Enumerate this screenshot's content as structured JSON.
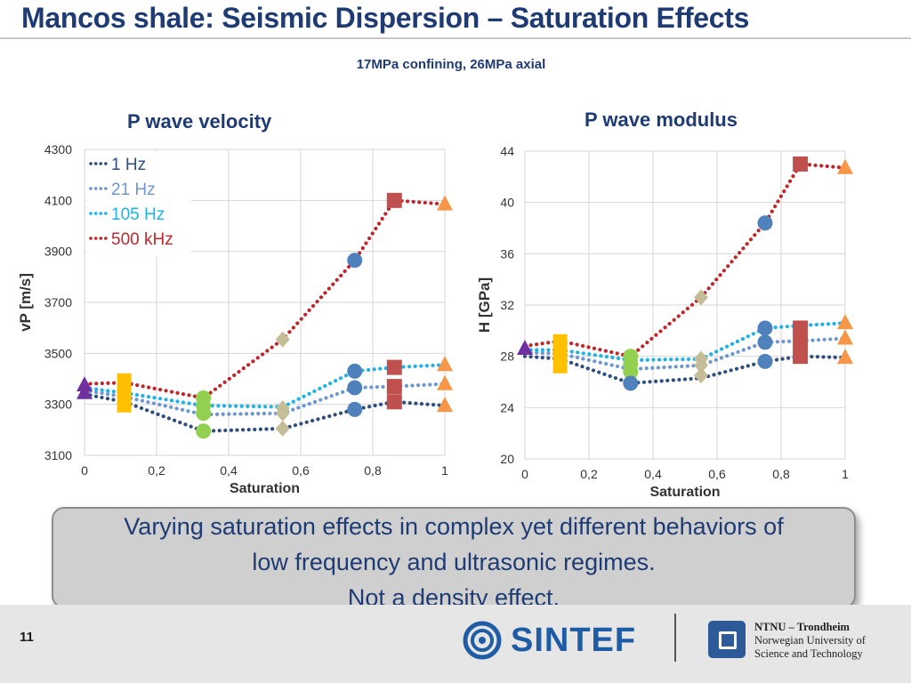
{
  "title": "Mancos shale: Seismic Dispersion – Saturation Effects",
  "subtitle": "17MPa confining, 26MPa axial",
  "callout": {
    "line1": "Varying saturation effects in complex yet different behaviors of",
    "line2": "low frequency and ultrasonic regimes.",
    "line3": "Not a density effect."
  },
  "footer": {
    "page_number": "11",
    "sintef_label": "SINTEF",
    "ntnu_line1": "NTNU – Trondheim",
    "ntnu_line2": "Norwegian University of",
    "ntnu_line3": "Science and Technology"
  },
  "series_colors": {
    "1 Hz": "#2f4f7f",
    "21 Hz": "#6f97cf",
    "105 Hz": "#1fb2e6",
    "500 kHz": "#c0272d"
  },
  "marker_colors": {
    "purple": "#7030a0",
    "yellow": "#ffc000",
    "green": "#92d050",
    "tan": "#c4bd97",
    "blue": "#4f81bd",
    "red": "#c0504d",
    "orange": "#f79646"
  },
  "chart_data": [
    {
      "id": "velocity",
      "type": "line",
      "title": "P wave velocity",
      "xlabel": "Saturation",
      "ylabel": "vP [m/s]",
      "xlim": [
        0,
        1
      ],
      "ylim": [
        3100,
        4300
      ],
      "xticks": [
        0,
        0.2,
        0.4,
        0.6,
        0.8,
        1
      ],
      "xtick_labels": [
        "0",
        "0,2",
        "0,4",
        "0,6",
        "0,8",
        "1"
      ],
      "yticks": [
        3100,
        3300,
        3500,
        3700,
        3900,
        4100,
        4300
      ],
      "legend": "top-left",
      "grid": true,
      "x": [
        0,
        0.11,
        0.33,
        0.55,
        0.75,
        0.86,
        1
      ],
      "series": [
        {
          "name": "1 Hz",
          "values": [
            3340,
            3310,
            3195,
            3205,
            3280,
            3310,
            3295
          ]
        },
        {
          "name": "21 Hz",
          "values": [
            3355,
            3330,
            3260,
            3265,
            3365,
            3370,
            3380
          ]
        },
        {
          "name": "105 Hz",
          "values": [
            3365,
            3345,
            3295,
            3290,
            3430,
            3445,
            3455
          ]
        },
        {
          "name": "500 kHz",
          "values": [
            3380,
            3385,
            3325,
            3555,
            3865,
            4100,
            4085
          ]
        }
      ],
      "markers": [
        {
          "x": 0,
          "y": 3375,
          "shape": "triangle",
          "color": "purple"
        },
        {
          "x": 0,
          "y": 3345,
          "shape": "triangle",
          "color": "purple"
        },
        {
          "x": 0.11,
          "y": 3345,
          "shape": "bar",
          "color": "yellow"
        },
        {
          "x": 0.33,
          "y": 3325,
          "shape": "circle",
          "color": "green"
        },
        {
          "x": 0.33,
          "y": 3295,
          "shape": "circle",
          "color": "green"
        },
        {
          "x": 0.33,
          "y": 3265,
          "shape": "circle",
          "color": "green"
        },
        {
          "x": 0.33,
          "y": 3195,
          "shape": "circle",
          "color": "green"
        },
        {
          "x": 0.55,
          "y": 3555,
          "shape": "diamond",
          "color": "tan"
        },
        {
          "x": 0.55,
          "y": 3285,
          "shape": "diamond",
          "color": "tan"
        },
        {
          "x": 0.55,
          "y": 3265,
          "shape": "diamond",
          "color": "tan"
        },
        {
          "x": 0.55,
          "y": 3205,
          "shape": "diamond",
          "color": "tan"
        },
        {
          "x": 0.75,
          "y": 3865,
          "shape": "circle",
          "color": "blue"
        },
        {
          "x": 0.75,
          "y": 3430,
          "shape": "circle",
          "color": "blue"
        },
        {
          "x": 0.75,
          "y": 3365,
          "shape": "circle",
          "color": "blue"
        },
        {
          "x": 0.75,
          "y": 3280,
          "shape": "circle",
          "color": "blue"
        },
        {
          "x": 0.86,
          "y": 4100,
          "shape": "square",
          "color": "red"
        },
        {
          "x": 0.86,
          "y": 3445,
          "shape": "square",
          "color": "red"
        },
        {
          "x": 0.86,
          "y": 3370,
          "shape": "square",
          "color": "red"
        },
        {
          "x": 0.86,
          "y": 3310,
          "shape": "square",
          "color": "red"
        },
        {
          "x": 1,
          "y": 4085,
          "shape": "triangle",
          "color": "orange"
        },
        {
          "x": 1,
          "y": 3455,
          "shape": "triangle",
          "color": "orange"
        },
        {
          "x": 1,
          "y": 3380,
          "shape": "triangle",
          "color": "orange"
        },
        {
          "x": 1,
          "y": 3295,
          "shape": "triangle",
          "color": "orange"
        }
      ]
    },
    {
      "id": "modulus",
      "type": "line",
      "title": "P wave modulus",
      "xlabel": "Saturation",
      "ylabel": "H [GPa]",
      "xlim": [
        0,
        1
      ],
      "ylim": [
        20,
        44
      ],
      "xticks": [
        0,
        0.2,
        0.4,
        0.6,
        0.8,
        1
      ],
      "xtick_labels": [
        "0",
        "0,2",
        "0,4",
        "0,6",
        "0,8",
        "1"
      ],
      "yticks": [
        20,
        24,
        28,
        32,
        36,
        40,
        44
      ],
      "grid": true,
      "x": [
        0,
        0.11,
        0.33,
        0.55,
        0.75,
        0.86,
        1
      ],
      "series": [
        {
          "name": "1 Hz",
          "values": [
            28.0,
            27.8,
            25.9,
            26.3,
            27.6,
            28.0,
            27.9
          ]
        },
        {
          "name": "21 Hz",
          "values": [
            28.3,
            28.2,
            27.0,
            27.3,
            29.1,
            29.2,
            29.4
          ]
        },
        {
          "name": "105 Hz",
          "values": [
            28.5,
            28.5,
            27.7,
            27.8,
            30.2,
            30.4,
            30.6
          ]
        },
        {
          "name": "500 kHz",
          "values": [
            28.8,
            29.2,
            28.0,
            32.6,
            38.4,
            43.0,
            42.7
          ]
        }
      ],
      "markers": [
        {
          "x": 0,
          "y": 28.6,
          "shape": "triangle",
          "color": "purple"
        },
        {
          "x": 0.11,
          "y": 28.2,
          "shape": "bar",
          "color": "yellow"
        },
        {
          "x": 0.33,
          "y": 28.0,
          "shape": "circle",
          "color": "green"
        },
        {
          "x": 0.33,
          "y": 27.4,
          "shape": "circle",
          "color": "green"
        },
        {
          "x": 0.33,
          "y": 26.8,
          "shape": "circle",
          "color": "green"
        },
        {
          "x": 0.33,
          "y": 25.9,
          "shape": "circle",
          "color": "blue"
        },
        {
          "x": 0.55,
          "y": 32.6,
          "shape": "diamond",
          "color": "tan"
        },
        {
          "x": 0.55,
          "y": 27.8,
          "shape": "diamond",
          "color": "tan"
        },
        {
          "x": 0.55,
          "y": 27.3,
          "shape": "diamond",
          "color": "tan"
        },
        {
          "x": 0.55,
          "y": 26.5,
          "shape": "diamond",
          "color": "tan"
        },
        {
          "x": 0.75,
          "y": 38.4,
          "shape": "circle",
          "color": "blue"
        },
        {
          "x": 0.75,
          "y": 30.2,
          "shape": "circle",
          "color": "blue"
        },
        {
          "x": 0.75,
          "y": 29.1,
          "shape": "circle",
          "color": "blue"
        },
        {
          "x": 0.75,
          "y": 27.6,
          "shape": "circle",
          "color": "blue"
        },
        {
          "x": 0.86,
          "y": 43.0,
          "shape": "square",
          "color": "red"
        },
        {
          "x": 0.86,
          "y": 30.2,
          "shape": "square",
          "color": "red"
        },
        {
          "x": 0.86,
          "y": 29.1,
          "shape": "square",
          "color": "red"
        },
        {
          "x": 0.86,
          "y": 28.0,
          "shape": "square",
          "color": "red"
        },
        {
          "x": 1,
          "y": 42.7,
          "shape": "triangle",
          "color": "orange"
        },
        {
          "x": 1,
          "y": 30.6,
          "shape": "triangle",
          "color": "orange"
        },
        {
          "x": 1,
          "y": 29.4,
          "shape": "triangle",
          "color": "orange"
        },
        {
          "x": 1,
          "y": 27.9,
          "shape": "triangle",
          "color": "orange"
        }
      ]
    }
  ]
}
